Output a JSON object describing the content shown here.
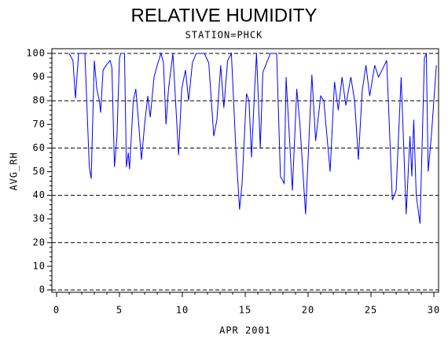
{
  "chart_data": {
    "type": "line",
    "title": "RELATIVE HUMIDITY",
    "subtitle": "STATION=PHCK",
    "x_label": "APR 2001",
    "y_label": "AVG_RH",
    "series": [
      {
        "name": "AVG_RH",
        "color": "#0000ff",
        "x": [
          1.0,
          1.3,
          1.5,
          1.75,
          2.25,
          2.6,
          2.75,
          3.0,
          3.2,
          3.4,
          3.5,
          3.7,
          3.95,
          4.25,
          4.4,
          4.6,
          4.8,
          5.0,
          5.1,
          5.4,
          5.55,
          5.7,
          5.8,
          6.1,
          6.3,
          6.5,
          6.75,
          7.0,
          7.25,
          7.45,
          7.75,
          8.0,
          8.3,
          8.5,
          8.7,
          8.9,
          9.25,
          9.7,
          9.95,
          10.25,
          10.5,
          10.8,
          11.1,
          11.75,
          12.1,
          12.5,
          12.75,
          13.05,
          13.3,
          13.6,
          13.9,
          14.25,
          14.55,
          14.75,
          15.1,
          15.3,
          15.5,
          15.75,
          15.9,
          16.2,
          16.4,
          17.0,
          17.5,
          17.8,
          18.1,
          18.25,
          18.75,
          19.1,
          19.35,
          19.8,
          20.3,
          20.6,
          21.0,
          21.25,
          21.75,
          22.1,
          22.4,
          22.7,
          23.0,
          23.4,
          23.7,
          24.0,
          24.3,
          24.6,
          24.9,
          25.3,
          25.6,
          26.25,
          26.7,
          27.0,
          27.4,
          27.8,
          28.1,
          28.25,
          28.4,
          28.6,
          28.9,
          29.25,
          29.4,
          29.55,
          29.8,
          30.2
        ],
        "values": [
          100,
          97,
          81,
          100,
          100,
          52,
          47,
          97,
          85,
          80,
          75,
          93,
          95,
          97,
          94,
          52,
          65,
          98,
          100,
          100,
          52,
          58,
          51,
          80,
          85,
          72,
          55,
          70,
          82,
          73,
          90,
          95,
          100,
          96,
          70,
          85,
          100,
          57,
          85,
          93,
          80,
          96,
          100,
          100,
          96,
          65,
          72,
          95,
          77,
          97,
          100,
          60,
          34,
          45,
          83,
          80,
          56,
          85,
          100,
          60,
          92,
          100,
          100,
          48,
          45,
          90,
          42,
          85,
          70,
          32,
          91,
          63,
          82,
          80,
          50,
          88,
          76,
          90,
          78,
          90,
          80,
          55,
          84,
          95,
          82,
          95,
          90,
          97,
          38,
          42,
          90,
          32,
          65,
          48,
          72,
          40,
          28,
          98,
          100,
          50,
          65,
          95
        ]
      }
    ],
    "xlim": [
      0,
      30
    ],
    "xticks": [
      0,
      5,
      10,
      15,
      20,
      25,
      30
    ],
    "ylim": [
      0,
      100
    ],
    "yticks": [
      0,
      10,
      20,
      30,
      40,
      50,
      60,
      70,
      80,
      90,
      100
    ],
    "grid_lines": [
      0,
      20,
      40,
      60,
      80,
      100
    ]
  }
}
